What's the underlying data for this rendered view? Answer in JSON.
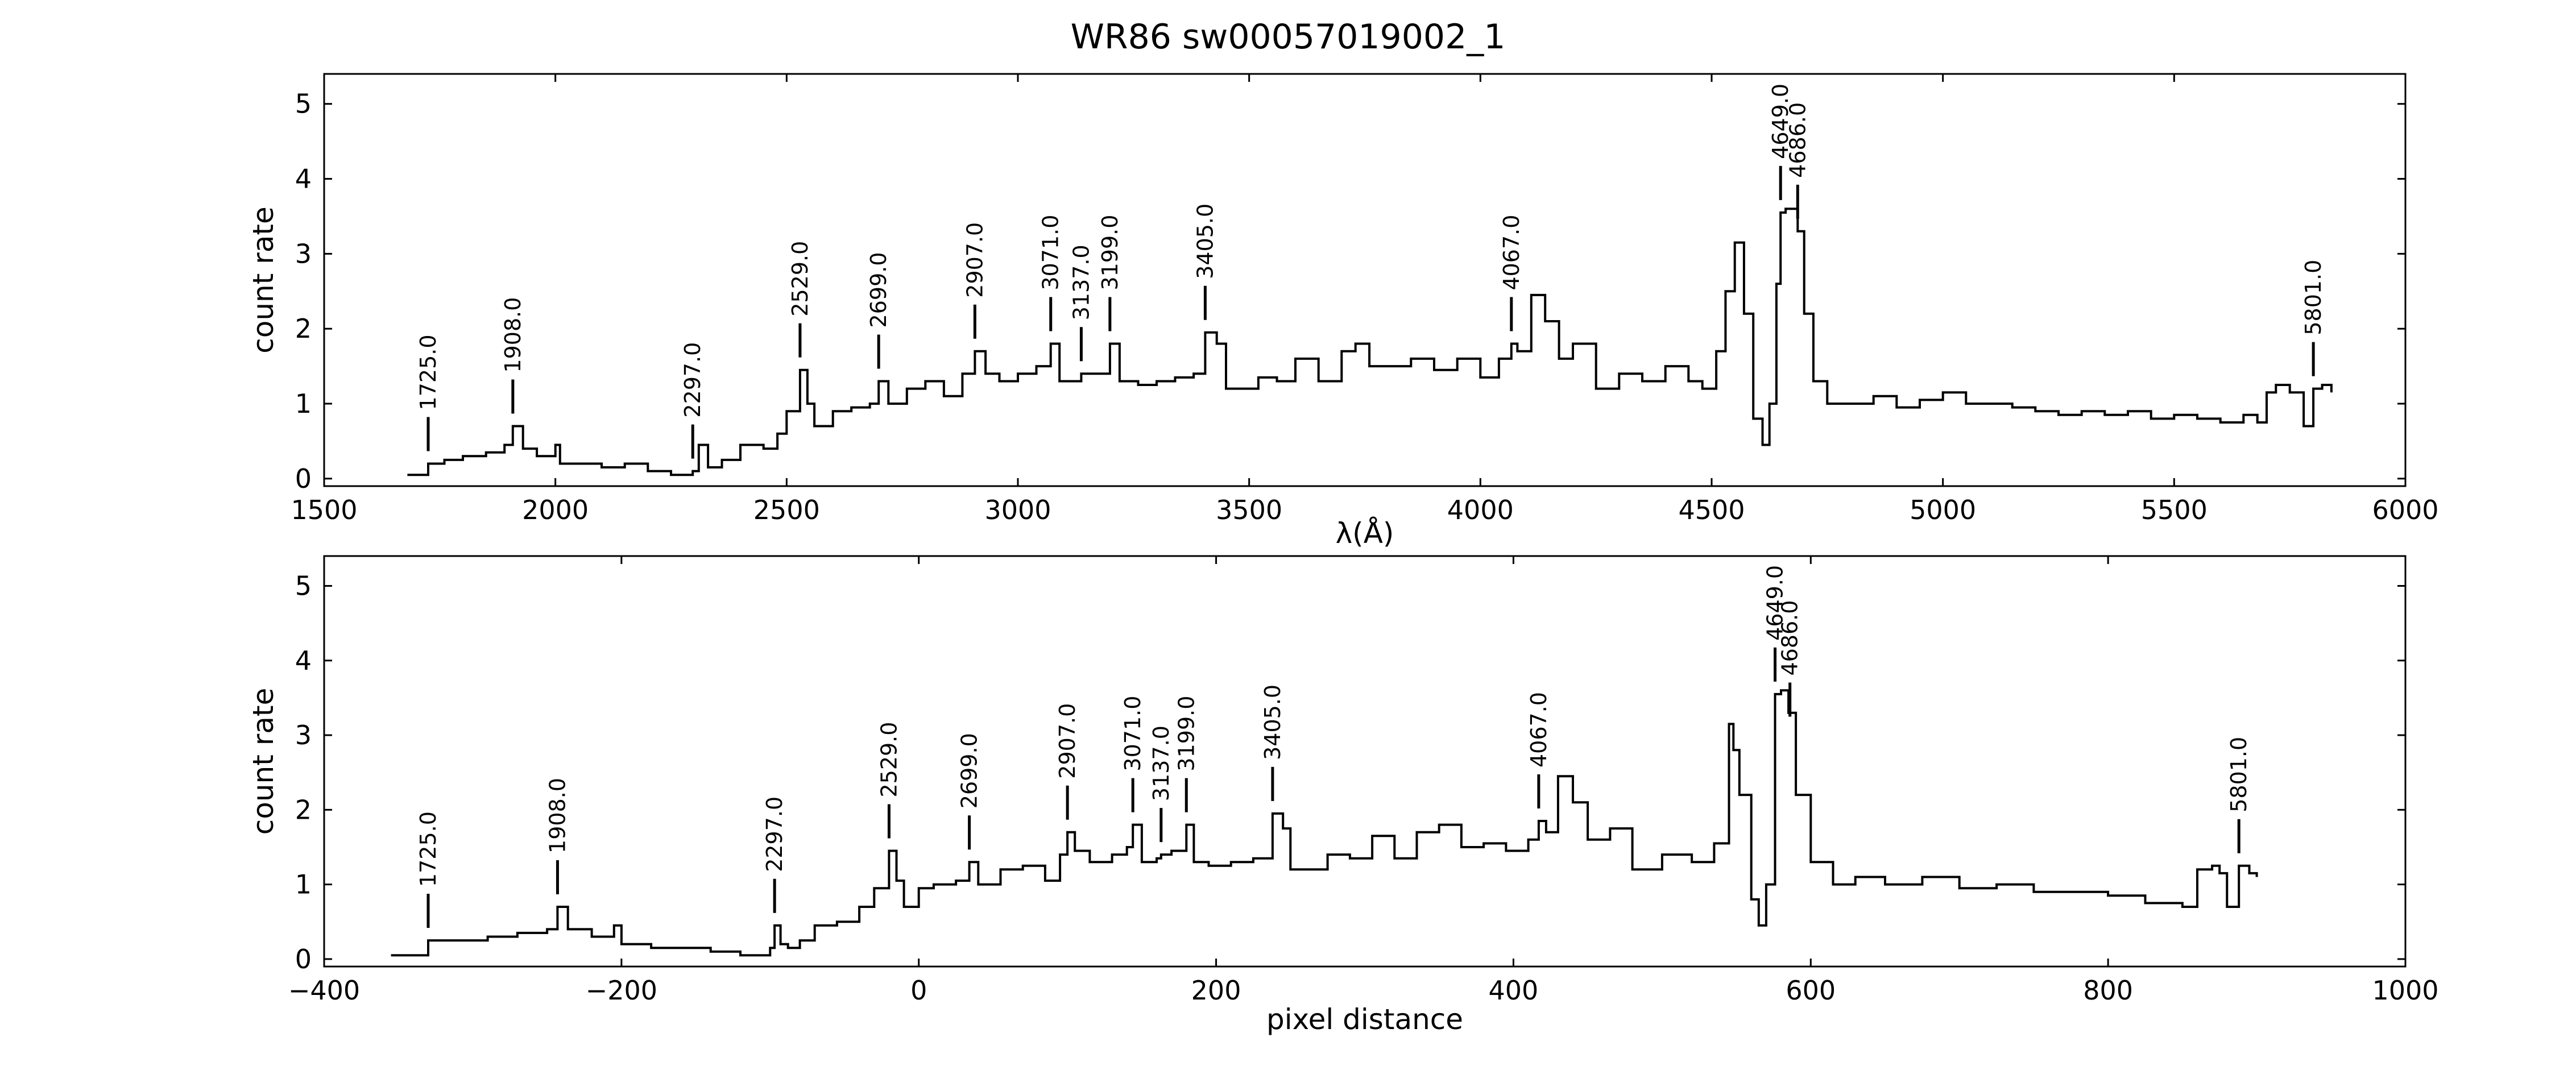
{
  "title": "WR86  sw00057019002_1",
  "chart_data": [
    {
      "type": "line",
      "title": "",
      "xlabel": "λ(Å)",
      "ylabel": "count rate",
      "xlim": [
        1500,
        6000
      ],
      "ylim": [
        -0.1,
        5.4
      ],
      "xticks": [
        1500,
        2000,
        2500,
        3000,
        3500,
        4000,
        4500,
        5000,
        5500,
        6000
      ],
      "yticks": [
        0,
        1,
        2,
        3,
        4,
        5
      ],
      "grid": false,
      "series": [
        {
          "x": [
            1680,
            1725,
            1760,
            1800,
            1850,
            1890,
            1908,
            1930,
            1960,
            2000,
            2010,
            2050,
            2100,
            2150,
            2200,
            2250,
            2280,
            2297,
            2310,
            2330,
            2360,
            2400,
            2450,
            2480,
            2500,
            2529,
            2545,
            2560,
            2600,
            2640,
            2680,
            2699,
            2720,
            2760,
            2800,
            2840,
            2880,
            2907,
            2930,
            2960,
            3000,
            3040,
            3071,
            3090,
            3120,
            3137,
            3160,
            3199,
            3220,
            3260,
            3300,
            3340,
            3380,
            3405,
            3430,
            3450,
            3490,
            3520,
            3560,
            3600,
            3650,
            3700,
            3730,
            3760,
            3800,
            3850,
            3900,
            3950,
            4000,
            4040,
            4067,
            4080,
            4110,
            4140,
            4170,
            4200,
            4250,
            4300,
            4350,
            4400,
            4450,
            4480,
            4510,
            4530,
            4550,
            4570,
            4590,
            4610,
            4625,
            4640,
            4649,
            4660,
            4686,
            4700,
            4720,
            4750,
            4800,
            4850,
            4900,
            4950,
            5000,
            5050,
            5100,
            5150,
            5200,
            5250,
            5300,
            5350,
            5400,
            5450,
            5500,
            5550,
            5600,
            5650,
            5680,
            5700,
            5720,
            5750,
            5780,
            5801,
            5820,
            5840
          ],
          "y": [
            0.05,
            0.2,
            0.25,
            0.3,
            0.35,
            0.45,
            0.7,
            0.4,
            0.3,
            0.45,
            0.2,
            0.2,
            0.15,
            0.2,
            0.1,
            0.05,
            0.05,
            0.1,
            0.45,
            0.15,
            0.25,
            0.45,
            0.4,
            0.6,
            0.9,
            1.45,
            1.0,
            0.7,
            0.9,
            0.95,
            1.0,
            1.3,
            1.0,
            1.2,
            1.3,
            1.1,
            1.4,
            1.7,
            1.4,
            1.3,
            1.4,
            1.5,
            1.8,
            1.3,
            1.3,
            1.4,
            1.4,
            1.8,
            1.3,
            1.25,
            1.3,
            1.35,
            1.4,
            1.95,
            1.8,
            1.2,
            1.2,
            1.35,
            1.3,
            1.6,
            1.3,
            1.7,
            1.8,
            1.5,
            1.5,
            1.6,
            1.45,
            1.6,
            1.35,
            1.6,
            1.8,
            1.7,
            2.45,
            2.1,
            1.6,
            1.8,
            1.2,
            1.4,
            1.3,
            1.5,
            1.3,
            1.2,
            1.7,
            2.5,
            3.15,
            2.2,
            0.8,
            0.45,
            1.0,
            2.6,
            3.55,
            3.6,
            3.3,
            2.2,
            1.3,
            1.0,
            1.0,
            1.1,
            0.95,
            1.05,
            1.15,
            1.0,
            1.0,
            0.95,
            0.9,
            0.85,
            0.9,
            0.85,
            0.9,
            0.8,
            0.85,
            0.8,
            0.75,
            0.85,
            0.75,
            1.15,
            1.25,
            1.15,
            0.7,
            1.2,
            1.25,
            1.15
          ]
        }
      ],
      "annotations": [
        {
          "x": 1725,
          "label": "1725.0"
        },
        {
          "x": 1908,
          "label": "1908.0"
        },
        {
          "x": 2297,
          "label": "2297.0"
        },
        {
          "x": 2529,
          "label": "2529.0"
        },
        {
          "x": 2699,
          "label": "2699.0"
        },
        {
          "x": 2907,
          "label": "2907.0"
        },
        {
          "x": 3071,
          "label": "3071.0"
        },
        {
          "x": 3137,
          "label": "3137.0"
        },
        {
          "x": 3199,
          "label": "3199.0"
        },
        {
          "x": 3405,
          "label": "3405.0"
        },
        {
          "x": 4067,
          "label": "4067.0"
        },
        {
          "x": 4649,
          "label": "4649.0"
        },
        {
          "x": 4686,
          "label": "4686.0"
        },
        {
          "x": 5801,
          "label": "5801.0"
        }
      ]
    },
    {
      "type": "line",
      "title": "",
      "xlabel": "pixel distance",
      "ylabel": "count rate",
      "xlim": [
        -400,
        1000
      ],
      "ylim": [
        -0.1,
        5.4
      ],
      "xticks": [
        -400,
        -200,
        0,
        200,
        400,
        600,
        800,
        1000
      ],
      "yticks": [
        0,
        1,
        2,
        3,
        4,
        5
      ],
      "grid": false,
      "series": [
        {
          "x": [
            -355,
            -330,
            -310,
            -290,
            -270,
            -250,
            -243,
            -236,
            -220,
            -205,
            -200,
            -180,
            -160,
            -140,
            -120,
            -110,
            -100,
            -97,
            -93,
            -88,
            -80,
            -70,
            -55,
            -40,
            -30,
            -20,
            -15,
            -10,
            0,
            10,
            25,
            34,
            40,
            55,
            70,
            85,
            95,
            100,
            105,
            115,
            130,
            140,
            144,
            150,
            160,
            163,
            170,
            180,
            185,
            195,
            210,
            225,
            238,
            245,
            250,
            260,
            275,
            290,
            305,
            320,
            335,
            350,
            365,
            380,
            395,
            410,
            417,
            422,
            430,
            440,
            450,
            465,
            480,
            500,
            520,
            535,
            545,
            548,
            552,
            560,
            565,
            570,
            576,
            580,
            585,
            590,
            600,
            615,
            630,
            650,
            675,
            700,
            725,
            750,
            775,
            800,
            825,
            850,
            860,
            870,
            875,
            880,
            888,
            895,
            900
          ],
          "y": [
            0.05,
            0.25,
            0.25,
            0.3,
            0.35,
            0.4,
            0.7,
            0.4,
            0.3,
            0.45,
            0.2,
            0.15,
            0.15,
            0.1,
            0.05,
            0.05,
            0.15,
            0.45,
            0.2,
            0.15,
            0.25,
            0.45,
            0.5,
            0.7,
            0.95,
            1.45,
            1.05,
            0.7,
            0.95,
            1.0,
            1.05,
            1.3,
            1.0,
            1.2,
            1.25,
            1.05,
            1.4,
            1.7,
            1.45,
            1.3,
            1.4,
            1.5,
            1.8,
            1.3,
            1.35,
            1.4,
            1.45,
            1.8,
            1.3,
            1.25,
            1.3,
            1.35,
            1.95,
            1.75,
            1.2,
            1.2,
            1.4,
            1.35,
            1.65,
            1.35,
            1.7,
            1.8,
            1.5,
            1.55,
            1.45,
            1.6,
            1.85,
            1.7,
            2.45,
            2.1,
            1.6,
            1.75,
            1.2,
            1.4,
            1.3,
            1.55,
            3.15,
            2.8,
            2.2,
            0.8,
            0.45,
            1.0,
            3.55,
            3.6,
            3.3,
            2.2,
            1.3,
            1.0,
            1.1,
            1.0,
            1.1,
            0.95,
            1.0,
            0.9,
            0.9,
            0.85,
            0.75,
            0.7,
            1.2,
            1.25,
            1.15,
            0.7,
            1.25,
            1.15,
            1.1
          ]
        }
      ],
      "annotations": [
        {
          "x": -330,
          "label": "1725.0"
        },
        {
          "x": -243,
          "label": "1908.0"
        },
        {
          "x": -97,
          "label": "2297.0"
        },
        {
          "x": -20,
          "label": "2529.0"
        },
        {
          "x": 34,
          "label": "2699.0"
        },
        {
          "x": 100,
          "label": "2907.0"
        },
        {
          "x": 144,
          "label": "3071.0"
        },
        {
          "x": 163,
          "label": "3137.0"
        },
        {
          "x": 180,
          "label": "3199.0"
        },
        {
          "x": 238,
          "label": "3405.0"
        },
        {
          "x": 417,
          "label": "4067.0"
        },
        {
          "x": 576,
          "label": "4649.0"
        },
        {
          "x": 586,
          "label": "4686.0"
        },
        {
          "x": 888,
          "label": "5801.0"
        }
      ]
    }
  ]
}
